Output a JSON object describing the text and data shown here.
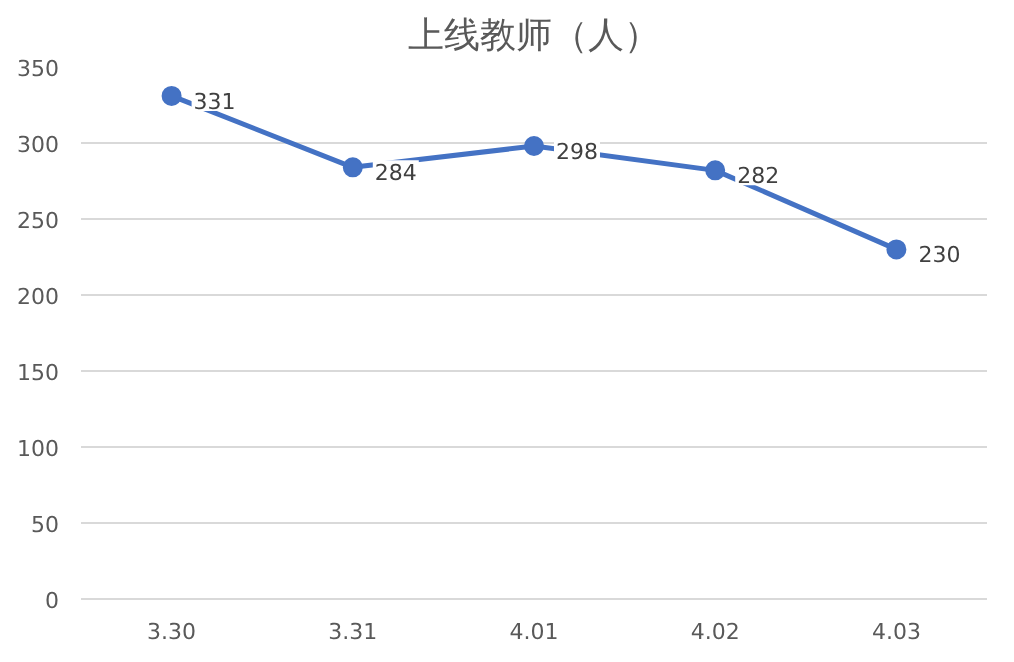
{
  "chart_data": {
    "type": "line",
    "title": "上线教师（人）",
    "categories": [
      "3.30",
      "3.31",
      "4.01",
      "4.02",
      "4.03"
    ],
    "series": [
      {
        "color": "#4472c4",
        "values": [
          331,
          284,
          298,
          282,
          230
        ]
      }
    ],
    "ylim": [
      0,
      350
    ],
    "yticks": [
      0,
      50,
      100,
      150,
      200,
      250,
      300,
      350
    ],
    "grid": "y",
    "marker": "circle",
    "line_style": "solid",
    "data_labels": true
  }
}
